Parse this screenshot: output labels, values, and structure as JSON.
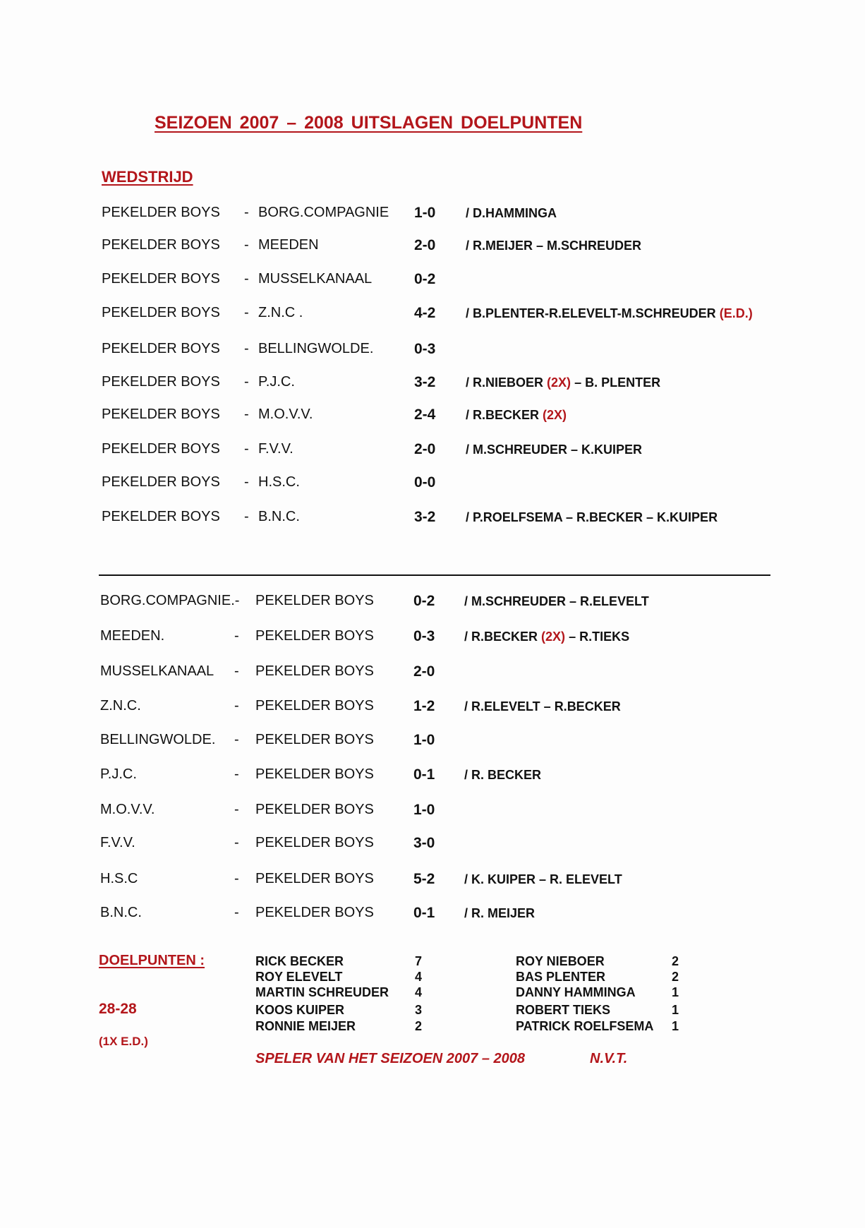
{
  "title": "SEIZOEN  2007 – 2008    UITSLAGEN  DOELPUNTEN",
  "section_heading": "WEDSTRIJD",
  "home_matches": [
    {
      "home": "PEKELDER  BOYS",
      "sep": "-",
      "away": "BORG.COMPAGNIE",
      "score": "1-0",
      "scorers": "/ D.HAMMINGA",
      "note": ""
    },
    {
      "home": "PEKELDER  BOYS",
      "sep": "-",
      "away": "MEEDEN",
      "score": "2-0",
      "scorers": "/ R.MEIJER – M.SCHREUDER",
      "note": ""
    },
    {
      "home": "PEKELDER  BOYS",
      "sep": "-",
      "away": "MUSSELKANAAL",
      "score": "0-2",
      "scorers": "",
      "note": ""
    },
    {
      "home": "PEKELDER  BOYS",
      "sep": "-",
      "away": "Z.N.C             .",
      "score": "4-2",
      "scorers": "/ B.PLENTER-R.ELEVELT-M.SCHREUDER",
      "note": "(E.D.)"
    },
    {
      "home": "PEKELDER  BOYS",
      "sep": "-",
      "away": "BELLINGWOLDE.",
      "score": "0-3",
      "scorers": "",
      "note": ""
    },
    {
      "home": "PEKELDER  BOYS",
      "sep": "-",
      "away": "P.J.C.",
      "score": "3-2",
      "scorers": "/ R.NIEBOER",
      "note": "(2X)",
      "scorers2": "– B. PLENTER"
    },
    {
      "home": "PEKELDER  BOYS",
      "sep": "-",
      "away": "M.O.V.V.",
      "score": "2-4",
      "scorers": "/ R.BECKER",
      "note": "(2X)"
    },
    {
      "home": "PEKELDER  BOYS",
      "sep": "-",
      "away": "F.V.V.",
      "score": "2-0",
      "scorers": "/  M.SCHREUDER – K.KUIPER",
      "note": ""
    },
    {
      "home": "PEKELDER  BOYS",
      "sep": "-",
      "away": "H.S.C.",
      "score": "0-0",
      "scorers": "",
      "note": ""
    },
    {
      "home": "PEKELDER  BOYS",
      "sep": "-",
      "away": "B.N.C.",
      "score": "3-2",
      "scorers": "/ P.ROELFSEMA – R.BECKER – K.KUIPER",
      "note": ""
    }
  ],
  "away_matches": [
    {
      "home": "BORG.COMPAGNIE.-",
      "sep": "",
      "away": "PEKELDER  BOYS",
      "score": "0-2",
      "scorers": "/  M.SCHREUDER – R.ELEVELT",
      "note": ""
    },
    {
      "home": "MEEDEN.",
      "sep": "-",
      "away": "PEKELDER  BOYS",
      "score": "0-3",
      "scorers": "/  R.BECKER",
      "note": "(2X)",
      "scorers2": "– R.TIEKS"
    },
    {
      "home": "MUSSELKANAAL",
      "sep": "-",
      "away": "PEKELDER  BOYS",
      "score": "2-0",
      "scorers": "",
      "note": ""
    },
    {
      "home": "Z.N.C.",
      "sep": "-",
      "away": "PEKELDER  BOYS",
      "score": "1-2",
      "scorers": "/ R.ELEVELT – R.BECKER",
      "note": ""
    },
    {
      "home": "BELLINGWOLDE.",
      "sep": "-",
      "away": "PEKELDER  BOYS",
      "score": "1-0",
      "scorers": "",
      "note": ""
    },
    {
      "home": "P.J.C.",
      "sep": "-",
      "away": "PEKELDER  BOYS",
      "score": "0-1",
      "scorers": "/ R. BECKER",
      "note": ""
    },
    {
      "home": "M.O.V.V.",
      "sep": "-",
      "away": "PEKELDER  BOYS",
      "score": "1-0",
      "scorers": "",
      "note": ""
    },
    {
      "home": "F.V.V.",
      "sep": "-",
      "away": "PEKELDER BOYS",
      "score": "3-0",
      "scorers": "",
      "note": ""
    },
    {
      "home": "H.S.C",
      "sep": "-",
      "away": "PEKELDER  BOYS",
      "score": "5-2",
      "scorers": "/  K. KUIPER – R. ELEVELT",
      "note": ""
    },
    {
      "home": "B.N.C.",
      "sep": "-",
      "away": "PEKELDER BOYS",
      "score": "0-1",
      "scorers": "/ R. MEIJER",
      "note": ""
    }
  ],
  "goals": {
    "heading": "DOELPUNTEN :",
    "total": "28-28",
    "own_goals": "(1X E.D.)",
    "left": [
      {
        "name": "RICK BECKER",
        "goals": "7"
      },
      {
        "name": "ROY ELEVELT",
        "goals": "4"
      },
      {
        "name": "MARTIN SCHREUDER",
        "goals": "4"
      },
      {
        "name": "KOOS KUIPER",
        "goals": "3"
      },
      {
        "name": "RONNIE MEIJER",
        "goals": "2"
      }
    ],
    "right": [
      {
        "name": "ROY NIEBOER",
        "goals": "2"
      },
      {
        "name": "BAS PLENTER",
        "goals": "2"
      },
      {
        "name": "DANNY HAMMINGA",
        "goals": "1"
      },
      {
        "name": "ROBERT TIEKS",
        "goals": "1"
      },
      {
        "name": "PATRICK ROELFSEMA",
        "goals": "1"
      }
    ],
    "player_of_season_label": "SPELER  VAN  HET SEIZOEN  2007 – 2008",
    "player_of_season_value": "N.V.T."
  },
  "colors": {
    "accent_red": "#b3161b",
    "text": "#111111"
  }
}
